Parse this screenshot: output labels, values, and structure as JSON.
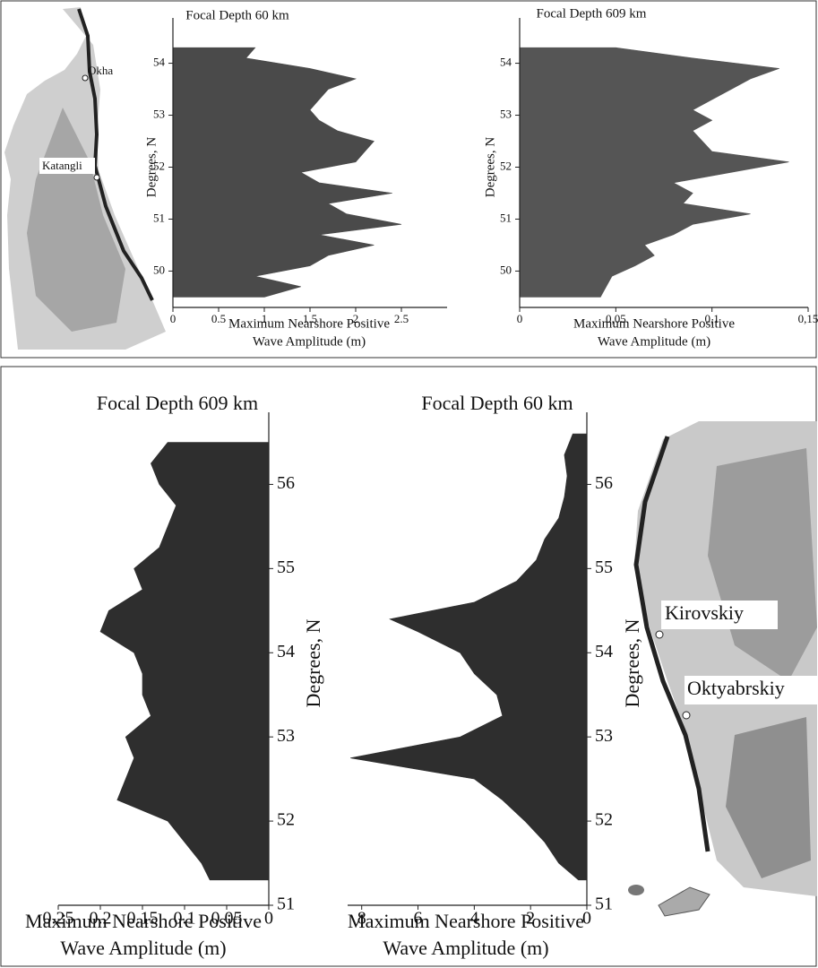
{
  "chart_data": [
    {
      "type": "profile",
      "title": "Focal Depth 60 km",
      "ylabel": "Degrees, N",
      "xlabel": [
        "Maximum Nearshore Positive",
        "Wave Amplitude (m)"
      ],
      "color": "#4a4a4a",
      "lat": [
        49.5,
        49.7,
        49.9,
        50.1,
        50.3,
        50.5,
        50.7,
        50.9,
        51.1,
        51.3,
        51.5,
        51.7,
        51.9,
        52.1,
        52.3,
        52.5,
        52.7,
        52.9,
        53.1,
        53.3,
        53.5,
        53.7,
        53.9,
        54.1,
        54.3
      ],
      "values": [
        1.0,
        1.4,
        0.9,
        1.5,
        1.7,
        2.2,
        1.6,
        2.5,
        1.9,
        1.7,
        2.4,
        1.6,
        1.4,
        2.0,
        2.1,
        2.2,
        1.8,
        1.6,
        1.5,
        1.6,
        1.7,
        2.0,
        1.5,
        0.8,
        0.9
      ],
      "xlim": [
        0,
        3
      ],
      "xticks": [
        0,
        0.5,
        1,
        1.5,
        2,
        2.5
      ],
      "ylim": [
        49.3,
        54.7
      ],
      "yticks": [
        50,
        51,
        52,
        53,
        54
      ]
    },
    {
      "type": "profile",
      "title": "Focal Depth 609 km",
      "ylabel": "Degrees, N",
      "xlabel": [
        "Maximum Nearshore Positive",
        "Wave Amplitude (m)"
      ],
      "color": "#555555",
      "lat": [
        49.5,
        49.7,
        49.9,
        50.1,
        50.3,
        50.5,
        50.7,
        50.9,
        51.1,
        51.3,
        51.5,
        51.7,
        51.9,
        52.1,
        52.3,
        52.5,
        52.7,
        52.9,
        53.1,
        53.3,
        53.5,
        53.7,
        53.9,
        54.1,
        54.3
      ],
      "values": [
        0.042,
        0.045,
        0.048,
        0.06,
        0.07,
        0.065,
        0.08,
        0.09,
        0.12,
        0.085,
        0.09,
        0.08,
        0.11,
        0.14,
        0.1,
        0.095,
        0.09,
        0.1,
        0.09,
        0.1,
        0.11,
        0.12,
        0.135,
        0.09,
        0.05
      ],
      "xlim": [
        0,
        0.15
      ],
      "xticks": [
        0,
        {
          "value": 0.05,
          "label": "0,05"
        },
        {
          "value": 0.1,
          "label": "0,1"
        },
        {
          "value": 0.15,
          "label": "0,15"
        }
      ],
      "ylim": [
        49.3,
        54.7
      ],
      "yticks": [
        50,
        51,
        52,
        53,
        54
      ]
    },
    {
      "type": "profile",
      "title": "Focal Depth 609 km",
      "ylabel": "Degrees, N",
      "xlabel": [
        "Maximum Nearshore Positive",
        "Wave Amplitude (m)"
      ],
      "color": "#2e2e2e",
      "xreverse": true,
      "lat": [
        51.3,
        51.5,
        51.75,
        52.0,
        52.25,
        52.5,
        52.75,
        53.0,
        53.25,
        53.5,
        53.75,
        54.0,
        54.25,
        54.5,
        54.75,
        55.0,
        55.25,
        55.5,
        55.75,
        56.0,
        56.25,
        56.5
      ],
      "values": [
        0.07,
        0.08,
        0.1,
        0.12,
        0.18,
        0.17,
        0.16,
        0.17,
        0.14,
        0.15,
        0.15,
        0.16,
        0.2,
        0.19,
        0.15,
        0.16,
        0.13,
        0.12,
        0.11,
        0.13,
        0.14,
        0.12
      ],
      "xlim": [
        0,
        0.25
      ],
      "xticks": [
        0,
        0.05,
        0.1,
        0.15,
        0.2,
        0.25
      ],
      "ylim": [
        51,
        56.75
      ],
      "yticks": [
        51,
        52,
        53,
        54,
        55,
        56
      ]
    },
    {
      "type": "profile",
      "title": "Focal Depth 60 km",
      "ylabel": "Degrees, N",
      "xlabel": [
        "Maximum Nearshore Positive",
        "Wave Amplitude (m)"
      ],
      "color": "#2e2e2e",
      "xreverse": true,
      "lat": [
        51.3,
        51.5,
        51.75,
        52.0,
        52.25,
        52.5,
        52.75,
        53.0,
        53.25,
        53.5,
        53.75,
        54.0,
        54.25,
        54.4,
        54.6,
        54.85,
        55.1,
        55.35,
        55.6,
        55.85,
        56.1,
        56.35,
        56.6
      ],
      "values": [
        0.3,
        1.0,
        1.5,
        2.2,
        3.0,
        4.0,
        8.4,
        4.5,
        3.0,
        3.2,
        4.0,
        4.5,
        6.0,
        7.0,
        4.0,
        2.5,
        1.8,
        1.5,
        1.0,
        0.8,
        0.7,
        0.8,
        0.5
      ],
      "xlim": [
        0,
        8.5
      ],
      "xticks": [
        0,
        2,
        4,
        6,
        8
      ],
      "ylim": [
        51,
        56.75
      ],
      "yticks": [
        51,
        52,
        53,
        54,
        55,
        56
      ]
    }
  ],
  "maps": [
    {
      "labels": [
        "Okha",
        "Katangli"
      ]
    },
    {
      "labels": [
        "Kirovskiy",
        "Oktyabrskiy"
      ]
    }
  ]
}
